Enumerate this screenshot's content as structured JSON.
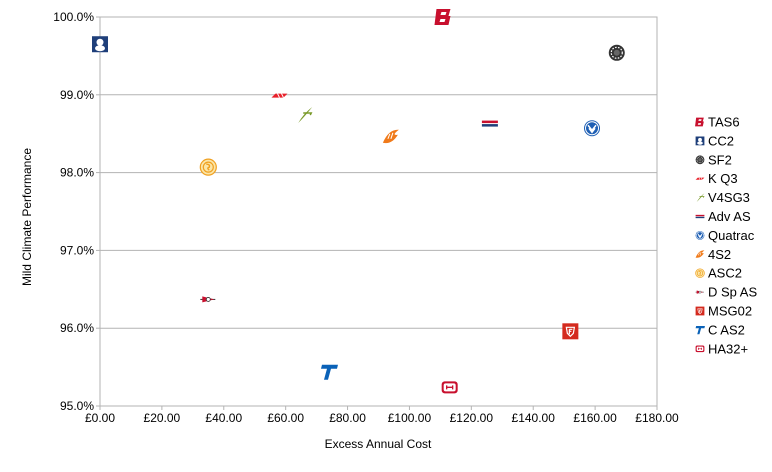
{
  "chart_data": {
    "type": "scatter",
    "title": "",
    "xlabel": "Excess Annual Cost",
    "ylabel": "Mild Climate Performance",
    "xlim": [
      0,
      180
    ],
    "ylim": [
      95,
      100
    ],
    "x_ticks": [
      0,
      20,
      40,
      60,
      80,
      100,
      120,
      140,
      160,
      180
    ],
    "x_tick_labels": [
      "£0.00",
      "£20.00",
      "£40.00",
      "£60.00",
      "£80.00",
      "£100.00",
      "£120.00",
      "£140.00",
      "£160.00",
      "£180.00"
    ],
    "y_ticks": [
      95,
      96,
      97,
      98,
      99,
      100
    ],
    "y_tick_labels": [
      "95.0%",
      "96.0%",
      "97.0%",
      "98.0%",
      "99.0%",
      "100.0%"
    ],
    "grid": "horizontal",
    "legend_position": "right",
    "series": [
      {
        "name": "TAS6",
        "x": 111,
        "y": 100.0,
        "color": "#c8102e",
        "icon": "bridgestone-b-logo"
      },
      {
        "name": "CC2",
        "x": 0,
        "y": 99.65,
        "color": "#1f3f7a",
        "icon": "michelin-man-logo"
      },
      {
        "name": "SF2",
        "x": 167,
        "y": 99.54,
        "color": "#333333",
        "icon": "tyre-wheel-logo"
      },
      {
        "name": "K Q3",
        "x": 58,
        "y": 98.99,
        "color": "#e8202a",
        "icon": "kumho-wing-logo"
      },
      {
        "name": "V4SG3",
        "x": 66,
        "y": 98.74,
        "color": "#7a9a2a",
        "icon": "vredestein-arrow-logo"
      },
      {
        "name": "Adv AS",
        "x": 126,
        "y": 98.63,
        "color": "#c8102e",
        "icon": "bfg-logo"
      },
      {
        "name": "Quatrac",
        "x": 159,
        "y": 98.57,
        "color": "#1e5fb4",
        "icon": "quatrac-badge-logo"
      },
      {
        "name": "4S2",
        "x": 94,
        "y": 98.46,
        "color": "#f07a1a",
        "icon": "flame-logo"
      },
      {
        "name": "ASC2",
        "x": 35,
        "y": 98.07,
        "color": "#f0a020",
        "icon": "sun-badge-logo"
      },
      {
        "name": "D Sp AS",
        "x": 35,
        "y": 96.37,
        "color": "#333333",
        "icon": "dunlop-arrow-logo"
      },
      {
        "name": "MSG02",
        "x": 152,
        "y": 95.96,
        "color": "#d42a1e",
        "icon": "firestone-shield-logo"
      },
      {
        "name": "C AS2",
        "x": 74,
        "y": 95.44,
        "color": "#0a62b8",
        "icon": "continental-t-logo"
      },
      {
        "name": "HA32+",
        "x": 113,
        "y": 95.24,
        "color": "#c8102e",
        "icon": "hankook-badge-logo"
      }
    ]
  }
}
